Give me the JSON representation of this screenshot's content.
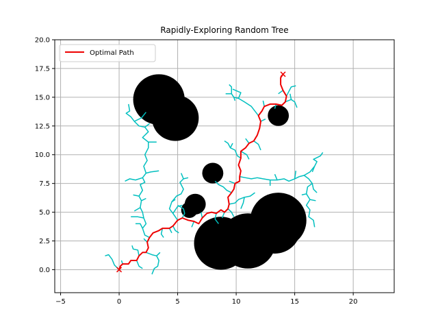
{
  "chart_data": {
    "type": "scatter",
    "title": "Rapidly-Exploring Random Tree",
    "xlabel": "",
    "ylabel": "",
    "xlim": [
      -5.5,
      23.5
    ],
    "ylim": [
      -2.0,
      20.0
    ],
    "xticks": [
      -5,
      0,
      5,
      10,
      15,
      20
    ],
    "yticks": [
      0.0,
      2.5,
      5.0,
      7.5,
      10.0,
      12.5,
      15.0,
      17.5,
      20.0
    ],
    "xtick_labels": [
      "−5",
      "0",
      "5",
      "10",
      "15",
      "20"
    ],
    "ytick_labels": [
      "0.0",
      "2.5",
      "5.0",
      "7.5",
      "10.0",
      "12.5",
      "15.0",
      "17.5",
      "20.0"
    ],
    "grid": true,
    "legend": {
      "placement": "top-left",
      "entries": [
        "Optimal Path"
      ]
    },
    "colors": {
      "path": "#ee0000",
      "tree": "#00bfbf",
      "obstacle": "#000000",
      "grid": "#b0b0b0"
    },
    "start": [
      0.0,
      0.0
    ],
    "goal": [
      14.0,
      17.0
    ],
    "obstacles": [
      {
        "x": 3.4,
        "y": 14.8,
        "r": 2.2
      },
      {
        "x": 4.8,
        "y": 13.2,
        "r": 2.0
      },
      {
        "x": 13.6,
        "y": 13.4,
        "r": 0.9
      },
      {
        "x": 8.0,
        "y": 8.4,
        "r": 0.9
      },
      {
        "x": 6.5,
        "y": 5.7,
        "r": 0.9
      },
      {
        "x": 6.0,
        "y": 5.2,
        "r": 0.7
      },
      {
        "x": 8.7,
        "y": 2.3,
        "r": 2.3
      },
      {
        "x": 11.0,
        "y": 2.5,
        "r": 2.4
      },
      {
        "x": 13.6,
        "y": 4.3,
        "r": 2.4
      },
      {
        "x": 13.3,
        "y": 3.6,
        "r": 2.2
      }
    ],
    "series": [
      {
        "name": "Optimal Path",
        "points": [
          [
            0.0,
            0.0
          ],
          [
            0.1,
            0.3
          ],
          [
            0.3,
            0.5
          ],
          [
            0.8,
            0.5
          ],
          [
            1.0,
            0.8
          ],
          [
            1.5,
            0.8
          ],
          [
            1.7,
            1.2
          ],
          [
            2.0,
            1.5
          ],
          [
            2.3,
            1.5
          ],
          [
            2.5,
            1.9
          ],
          [
            2.4,
            2.4
          ],
          [
            2.6,
            2.8
          ],
          [
            2.9,
            3.2
          ],
          [
            3.4,
            3.4
          ],
          [
            3.7,
            3.6
          ],
          [
            4.3,
            3.6
          ],
          [
            4.6,
            3.8
          ],
          [
            5.0,
            4.3
          ],
          [
            5.4,
            4.5
          ],
          [
            5.9,
            4.3
          ],
          [
            6.4,
            4.2
          ],
          [
            6.8,
            4.0
          ],
          [
            7.1,
            4.5
          ],
          [
            7.5,
            4.9
          ],
          [
            7.9,
            5.0
          ],
          [
            8.3,
            4.9
          ],
          [
            8.7,
            5.2
          ],
          [
            9.0,
            5.0
          ],
          [
            9.3,
            5.3
          ],
          [
            9.4,
            5.7
          ],
          [
            9.3,
            6.3
          ],
          [
            9.6,
            6.7
          ],
          [
            9.8,
            7.0
          ],
          [
            9.9,
            7.5
          ],
          [
            10.3,
            7.7
          ],
          [
            10.3,
            8.1
          ],
          [
            10.4,
            8.6
          ],
          [
            10.2,
            9.1
          ],
          [
            10.4,
            9.7
          ],
          [
            10.4,
            10.3
          ],
          [
            10.8,
            10.6
          ],
          [
            11.1,
            11.0
          ],
          [
            11.5,
            11.2
          ],
          [
            11.8,
            11.7
          ],
          [
            12.0,
            12.3
          ],
          [
            12.1,
            12.9
          ],
          [
            11.9,
            13.4
          ],
          [
            12.2,
            13.8
          ],
          [
            12.4,
            14.2
          ],
          [
            12.9,
            14.4
          ],
          [
            13.4,
            14.4
          ],
          [
            13.9,
            14.3
          ],
          [
            14.2,
            14.6
          ],
          [
            14.3,
            15.1
          ],
          [
            14.0,
            15.6
          ],
          [
            13.8,
            16.1
          ],
          [
            13.8,
            16.7
          ],
          [
            14.0,
            17.0
          ]
        ]
      }
    ],
    "tree_segments": [
      [
        [
          0.0,
          0.0
        ],
        [
          -0.4,
          0.4
        ],
        [
          -0.6,
          0.9
        ],
        [
          -0.9,
          1.3
        ],
        [
          -1.2,
          1.2
        ]
      ],
      [
        [
          0.3,
          0.5
        ],
        [
          0.2,
          0.8
        ]
      ],
      [
        [
          1.5,
          0.8
        ],
        [
          1.7,
          0.3
        ],
        [
          2.0,
          0.1
        ]
      ],
      [
        [
          2.3,
          1.5
        ],
        [
          2.8,
          1.3
        ],
        [
          3.2,
          1.2
        ],
        [
          3.4,
          0.8
        ],
        [
          3.3,
          0.3
        ],
        [
          3.0,
          0.1
        ],
        [
          2.8,
          -0.4
        ]
      ],
      [
        [
          3.2,
          1.2
        ],
        [
          3.5,
          1.5
        ]
      ],
      [
        [
          1.7,
          1.2
        ],
        [
          1.6,
          1.7
        ],
        [
          1.2,
          1.8
        ],
        [
          1.1,
          2.1
        ]
      ],
      [
        [
          2.4,
          2.4
        ],
        [
          2.1,
          2.7
        ]
      ],
      [
        [
          2.6,
          2.8
        ],
        [
          2.2,
          3.0
        ],
        [
          2.0,
          3.6
        ],
        [
          1.8,
          4.0
        ],
        [
          1.4,
          4.0
        ]
      ],
      [
        [
          2.0,
          3.6
        ],
        [
          2.3,
          4.0
        ],
        [
          2.1,
          4.5
        ],
        [
          1.6,
          4.6
        ],
        [
          1.0,
          4.6
        ]
      ],
      [
        [
          2.1,
          4.5
        ],
        [
          2.0,
          5.0
        ],
        [
          1.8,
          5.4
        ],
        [
          1.9,
          6.0
        ],
        [
          1.7,
          6.4
        ],
        [
          1.2,
          6.5
        ]
      ],
      [
        [
          1.9,
          6.0
        ],
        [
          2.3,
          6.2
        ]
      ],
      [
        [
          1.8,
          5.4
        ],
        [
          1.3,
          5.1
        ]
      ],
      [
        [
          1.7,
          6.4
        ],
        [
          2.0,
          6.9
        ],
        [
          1.8,
          7.4
        ],
        [
          2.2,
          7.6
        ],
        [
          2.0,
          8.0
        ],
        [
          1.4,
          7.8
        ],
        [
          0.9,
          7.9
        ],
        [
          0.5,
          7.7
        ]
      ],
      [
        [
          2.0,
          8.0
        ],
        [
          2.3,
          8.4
        ],
        [
          2.7,
          8.5
        ],
        [
          3.4,
          8.6
        ]
      ],
      [
        [
          2.3,
          8.4
        ],
        [
          2.1,
          9.0
        ],
        [
          2.4,
          9.5
        ],
        [
          2.2,
          10.0
        ],
        [
          2.5,
          10.6
        ],
        [
          2.5,
          11.1
        ],
        [
          3.2,
          11.1
        ]
      ],
      [
        [
          2.5,
          11.1
        ],
        [
          2.0,
          11.5
        ],
        [
          2.5,
          12.0
        ],
        [
          2.2,
          12.4
        ],
        [
          2.6,
          12.7
        ]
      ],
      [
        [
          2.2,
          12.4
        ],
        [
          1.7,
          12.5
        ],
        [
          1.3,
          12.9
        ],
        [
          1.0,
          13.3
        ],
        [
          0.6,
          13.6
        ],
        [
          0.9,
          13.8
        ],
        [
          0.8,
          14.4
        ]
      ],
      [
        [
          1.3,
          12.9
        ],
        [
          1.9,
          13.2
        ],
        [
          2.3,
          13.7
        ]
      ],
      [
        [
          3.7,
          3.6
        ],
        [
          3.6,
          3.1
        ],
        [
          3.8,
          2.8
        ]
      ],
      [
        [
          4.3,
          3.6
        ],
        [
          4.5,
          3.2
        ]
      ],
      [
        [
          4.6,
          3.8
        ],
        [
          4.8,
          3.4
        ],
        [
          5.1,
          3.2
        ]
      ],
      [
        [
          5.0,
          4.3
        ],
        [
          4.6,
          4.9
        ],
        [
          4.3,
          5.3
        ],
        [
          4.5,
          5.9
        ],
        [
          4.8,
          6.1
        ]
      ],
      [
        [
          4.6,
          4.9
        ],
        [
          5.0,
          5.5
        ],
        [
          5.4,
          5.6
        ]
      ],
      [
        [
          4.5,
          5.9
        ],
        [
          4.9,
          6.4
        ],
        [
          5.3,
          6.6
        ],
        [
          5.5,
          7.0
        ],
        [
          5.2,
          7.6
        ],
        [
          5.5,
          7.9
        ],
        [
          5.3,
          8.4
        ]
      ],
      [
        [
          5.5,
          7.9
        ],
        [
          5.9,
          8.0
        ]
      ],
      [
        [
          5.4,
          4.5
        ],
        [
          5.6,
          4.9
        ],
        [
          5.5,
          5.3
        ],
        [
          5.0,
          5.6
        ]
      ],
      [
        [
          6.4,
          4.2
        ],
        [
          6.2,
          3.7
        ]
      ],
      [
        [
          7.1,
          4.5
        ],
        [
          7.0,
          5.0
        ]
      ],
      [
        [
          8.3,
          4.9
        ],
        [
          8.2,
          4.4
        ],
        [
          8.5,
          4.0
        ]
      ],
      [
        [
          9.0,
          5.0
        ],
        [
          8.8,
          4.5
        ]
      ],
      [
        [
          9.3,
          5.3
        ],
        [
          9.6,
          5.0
        ],
        [
          9.8,
          4.6
        ]
      ],
      [
        [
          9.4,
          5.7
        ],
        [
          9.9,
          5.8
        ],
        [
          10.2,
          6.1
        ],
        [
          10.7,
          6.3
        ],
        [
          11.2,
          6.4
        ],
        [
          11.6,
          6.7
        ]
      ],
      [
        [
          10.7,
          6.3
        ],
        [
          10.6,
          5.8
        ],
        [
          10.4,
          5.3
        ]
      ],
      [
        [
          9.6,
          6.7
        ],
        [
          9.2,
          6.9
        ],
        [
          8.9,
          7.2
        ],
        [
          8.5,
          7.4
        ],
        [
          8.2,
          7.7
        ]
      ],
      [
        [
          9.9,
          7.5
        ],
        [
          9.4,
          7.7
        ]
      ],
      [
        [
          10.3,
          8.1
        ],
        [
          10.8,
          8.0
        ],
        [
          11.3,
          7.9
        ],
        [
          11.8,
          8.0
        ],
        [
          12.3,
          7.9
        ],
        [
          12.9,
          7.8
        ],
        [
          13.5,
          7.8
        ],
        [
          14.1,
          7.9
        ],
        [
          14.5,
          7.7
        ],
        [
          15.0,
          7.9
        ],
        [
          15.4,
          8.1
        ]
      ],
      [
        [
          12.9,
          7.8
        ],
        [
          12.9,
          7.3
        ]
      ],
      [
        [
          13.5,
          7.8
        ],
        [
          13.3,
          8.3
        ]
      ],
      [
        [
          15.0,
          7.9
        ],
        [
          15.1,
          8.6
        ]
      ],
      [
        [
          15.4,
          8.1
        ],
        [
          15.8,
          8.2
        ],
        [
          16.2,
          7.9
        ],
        [
          16.5,
          7.5
        ],
        [
          16.6,
          7.0
        ],
        [
          16.9,
          6.7
        ]
      ],
      [
        [
          16.5,
          7.5
        ],
        [
          16.1,
          7.2
        ],
        [
          16.0,
          6.6
        ],
        [
          16.3,
          6.1
        ],
        [
          16.0,
          5.6
        ],
        [
          16.3,
          5.2
        ],
        [
          16.2,
          4.6
        ],
        [
          16.6,
          4.3
        ],
        [
          16.7,
          3.7
        ]
      ],
      [
        [
          16.0,
          6.6
        ],
        [
          15.6,
          6.5
        ]
      ],
      [
        [
          16.3,
          6.1
        ],
        [
          16.8,
          6.0
        ]
      ],
      [
        [
          15.8,
          8.2
        ],
        [
          16.3,
          8.5
        ],
        [
          16.7,
          9.0
        ],
        [
          16.9,
          9.4
        ],
        [
          16.6,
          9.6
        ],
        [
          17.2,
          9.9
        ],
        [
          17.4,
          10.2
        ]
      ],
      [
        [
          16.7,
          9.0
        ],
        [
          16.5,
          8.5
        ]
      ],
      [
        [
          10.4,
          9.7
        ],
        [
          10.1,
          9.9
        ],
        [
          9.9,
          10.4
        ],
        [
          9.5,
          10.6
        ],
        [
          9.3,
          11.0
        ],
        [
          9.0,
          11.2
        ]
      ],
      [
        [
          9.5,
          10.6
        ],
        [
          9.7,
          11.0
        ]
      ],
      [
        [
          10.4,
          10.3
        ],
        [
          10.9,
          10.0
        ],
        [
          11.1,
          9.6
        ]
      ],
      [
        [
          11.1,
          11.0
        ],
        [
          10.8,
          11.4
        ]
      ],
      [
        [
          11.5,
          11.2
        ],
        [
          11.9,
          10.9
        ],
        [
          12.1,
          10.4
        ]
      ],
      [
        [
          12.1,
          12.9
        ],
        [
          12.5,
          13.1
        ]
      ],
      [
        [
          11.9,
          13.4
        ],
        [
          11.3,
          14.2
        ],
        [
          10.7,
          14.6
        ],
        [
          10.2,
          14.9
        ],
        [
          9.8,
          15.0
        ],
        [
          9.6,
          15.3
        ],
        [
          9.6,
          15.9
        ],
        [
          9.4,
          16.1
        ]
      ],
      [
        [
          9.6,
          15.3
        ],
        [
          9.1,
          15.3
        ]
      ],
      [
        [
          9.8,
          15.0
        ],
        [
          9.9,
          14.7
        ]
      ],
      [
        [
          10.2,
          14.9
        ],
        [
          10.4,
          15.4
        ],
        [
          9.7,
          15.7
        ]
      ],
      [
        [
          12.4,
          14.2
        ],
        [
          12.3,
          14.7
        ]
      ],
      [
        [
          13.4,
          14.4
        ],
        [
          13.3,
          14.0
        ]
      ],
      [
        [
          14.2,
          14.6
        ],
        [
          14.7,
          14.8
        ],
        [
          15.0,
          14.6
        ],
        [
          15.2,
          14.1
        ]
      ],
      [
        [
          14.7,
          14.8
        ],
        [
          14.6,
          15.3
        ]
      ],
      [
        [
          14.3,
          15.1
        ],
        [
          14.7,
          15.9
        ],
        [
          15.1,
          16.0
        ]
      ],
      [
        [
          14.0,
          15.6
        ],
        [
          13.6,
          15.3
        ]
      ]
    ]
  }
}
